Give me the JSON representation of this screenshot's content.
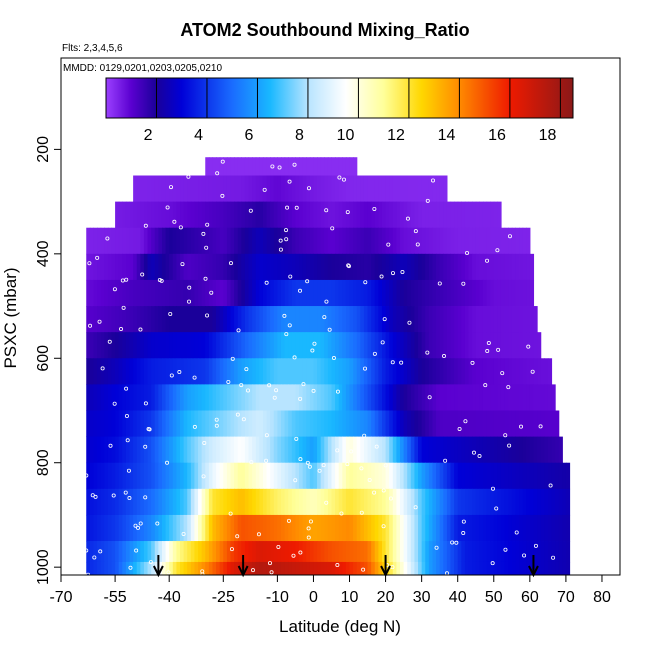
{
  "chart_data": {
    "type": "heatmap",
    "title": "ATOM2 Southbound Mixing_Ratio",
    "annotations": [
      "Flts: 2,3,4,5,6",
      "MMDD: 0129,0201,0203,0205,0210"
    ],
    "xlabel": "Latitude (deg N)",
    "ylabel": "PSXC (mbar)",
    "xlim": [
      -70,
      85
    ],
    "ylim": [
      1015,
      25
    ],
    "y_reversed": true,
    "x_ticks": [
      -70,
      -55,
      -40,
      -25,
      -10,
      0,
      10,
      20,
      30,
      40,
      50,
      60,
      70,
      80
    ],
    "x_tick_labels": [
      "-70",
      "-55",
      "-40",
      "-25",
      "-10",
      "0",
      "10",
      "20",
      "30",
      "40",
      "50",
      "60",
      "70",
      "80"
    ],
    "y_ticks": [
      200,
      400,
      600,
      800,
      1000
    ],
    "y_tick_labels": [
      "200",
      "400",
      "600",
      "800",
      "1000"
    ],
    "colorbar": {
      "range": [
        0,
        18.5
      ],
      "ticks": [
        2,
        4,
        6,
        8,
        10,
        12,
        14,
        16,
        18
      ],
      "tick_labels": [
        "2",
        "4",
        "6",
        "8",
        "10",
        "12",
        "14",
        "16",
        "18"
      ],
      "stops": [
        [
          0,
          "#9b40ff"
        ],
        [
          1,
          "#5a00d0"
        ],
        [
          2,
          "#1a009a"
        ],
        [
          3,
          "#0000d8"
        ],
        [
          5,
          "#1a6cff"
        ],
        [
          6.5,
          "#19b8ff"
        ],
        [
          8,
          "#b8e4ff"
        ],
        [
          9.5,
          "#ffffff"
        ],
        [
          11,
          "#ffff9a"
        ],
        [
          12.5,
          "#ffd700"
        ],
        [
          14,
          "#ff8a00"
        ],
        [
          16,
          "#ee1a00"
        ],
        [
          18.5,
          "#8b1818"
        ]
      ]
    },
    "pressure_bands": [
      {
        "p": [
          215,
          250
        ],
        "lat": [
          -30,
          12
        ],
        "lat_nodes": [
          -60,
          80
        ],
        "values": [
          0.3,
          0.3
        ]
      },
      {
        "p": [
          250,
          300
        ],
        "lat": [
          -50,
          37
        ],
        "lat_nodes": [
          -60,
          -20,
          -10,
          0,
          10,
          80
        ],
        "values": [
          0.4,
          0.6,
          0.9,
          0.6,
          0.4,
          0.3
        ]
      },
      {
        "p": [
          300,
          350
        ],
        "lat": [
          -55,
          52
        ],
        "lat_nodes": [
          -60,
          -40,
          -25,
          -15,
          -5,
          5,
          15,
          30,
          80
        ],
        "values": [
          0.5,
          0.8,
          1.3,
          1.8,
          1.0,
          0.7,
          1.0,
          0.5,
          0.4
        ]
      },
      {
        "p": [
          350,
          400
        ],
        "lat": [
          -63,
          60
        ],
        "lat_nodes": [
          -70,
          -48,
          -40,
          -25,
          -15,
          -5,
          5,
          15,
          25,
          40,
          80
        ],
        "values": [
          0.4,
          0.6,
          2.0,
          1.3,
          2.5,
          1.5,
          1.0,
          1.5,
          0.8,
          0.5,
          0.4
        ]
      },
      {
        "p": [
          400,
          450
        ],
        "lat": [
          -63,
          61
        ],
        "lat_nodes": [
          -70,
          -50,
          -45,
          -35,
          -25,
          -15,
          -5,
          5,
          15,
          25,
          35,
          45,
          80
        ],
        "values": [
          0.5,
          1.0,
          2.5,
          1.2,
          1.6,
          2.8,
          2.5,
          2.0,
          1.8,
          2.5,
          1.5,
          0.8,
          0.5
        ]
      },
      {
        "p": [
          450,
          500
        ],
        "lat": [
          -63,
          61
        ],
        "lat_nodes": [
          -70,
          -50,
          -35,
          -25,
          -15,
          -5,
          5,
          15,
          25,
          35,
          50,
          80
        ],
        "values": [
          0.6,
          1.3,
          1.6,
          1.0,
          3.0,
          4.0,
          4.0,
          3.5,
          2.0,
          1.5,
          0.8,
          0.6
        ]
      },
      {
        "p": [
          500,
          550
        ],
        "lat": [
          -63,
          62
        ],
        "lat_nodes": [
          -70,
          -50,
          -40,
          -28,
          -18,
          -8,
          2,
          12,
          22,
          32,
          45,
          80
        ],
        "values": [
          0.8,
          1.5,
          2.0,
          2.0,
          4.0,
          5.5,
          5.5,
          4.5,
          2.5,
          1.5,
          0.8,
          0.6
        ]
      },
      {
        "p": [
          550,
          600
        ],
        "lat": [
          -63,
          63
        ],
        "lat_nodes": [
          -70,
          -55,
          -45,
          -30,
          -18,
          -8,
          2,
          12,
          22,
          32,
          45,
          80
        ],
        "values": [
          1.0,
          2.0,
          2.8,
          3.0,
          5.0,
          6.5,
          6.5,
          5.0,
          3.0,
          1.5,
          0.8,
          0.6
        ]
      },
      {
        "p": [
          600,
          650
        ],
        "lat": [
          -63,
          66
        ],
        "lat_nodes": [
          -70,
          -55,
          -45,
          -30,
          -20,
          -10,
          0,
          10,
          20,
          30,
          45,
          80
        ],
        "values": [
          1.5,
          2.5,
          3.5,
          4.0,
          6.0,
          7.0,
          7.0,
          6.0,
          3.5,
          2.0,
          1.0,
          0.6
        ]
      },
      {
        "p": [
          650,
          700
        ],
        "lat": [
          -63,
          67
        ],
        "lat_nodes": [
          -70,
          -55,
          -45,
          -35,
          -25,
          -15,
          -5,
          5,
          15,
          25,
          35,
          80
        ],
        "values": [
          2.0,
          3.0,
          3.5,
          6.0,
          7.0,
          8.0,
          8.0,
          7.0,
          4.5,
          2.0,
          1.0,
          0.8
        ]
      },
      {
        "p": [
          700,
          750
        ],
        "lat": [
          -63,
          68
        ],
        "lat_nodes": [
          -70,
          -55,
          -45,
          -35,
          -25,
          -15,
          -5,
          5,
          15,
          25,
          35,
          80
        ],
        "values": [
          2.5,
          3.0,
          4.0,
          6.5,
          7.5,
          8.5,
          7.0,
          6.5,
          5.5,
          2.5,
          1.2,
          1.0
        ]
      },
      {
        "p": [
          750,
          800
        ],
        "lat": [
          -63,
          69
        ],
        "lat_nodes": [
          -70,
          -55,
          -45,
          -35,
          -28,
          -20,
          -10,
          0,
          10,
          20,
          30,
          80
        ],
        "values": [
          2.5,
          3.2,
          4.5,
          7.0,
          8.5,
          9.5,
          7.5,
          6.0,
          10.0,
          8.0,
          3.0,
          1.2
        ]
      },
      {
        "p": [
          800,
          850
        ],
        "lat": [
          -63,
          71
        ],
        "lat_nodes": [
          -70,
          -55,
          -45,
          -35,
          -28,
          -20,
          -10,
          0,
          10,
          20,
          30,
          40,
          80
        ],
        "values": [
          2.5,
          3.5,
          4.5,
          6.5,
          9.0,
          11.0,
          9.0,
          7.0,
          11.0,
          10.0,
          6.0,
          3.0,
          2.0
        ]
      },
      {
        "p": [
          850,
          900
        ],
        "lat": [
          -63,
          71
        ],
        "lat_nodes": [
          -70,
          -55,
          -45,
          -35,
          -28,
          -20,
          -10,
          0,
          10,
          20,
          30,
          40,
          80
        ],
        "values": [
          2.8,
          3.8,
          5.0,
          7.0,
          12.0,
          13.0,
          11.5,
          10.5,
          12.0,
          11.0,
          7.0,
          4.0,
          2.0
        ]
      },
      {
        "p": [
          900,
          950
        ],
        "lat": [
          -63,
          71
        ],
        "lat_nodes": [
          -70,
          -55,
          -45,
          -35,
          -28,
          -20,
          -10,
          0,
          10,
          20,
          30,
          40,
          80
        ],
        "values": [
          2.8,
          4.0,
          5.5,
          8.0,
          13.0,
          15.0,
          14.5,
          13.5,
          14.0,
          12.0,
          7.0,
          3.5,
          2.0
        ]
      },
      {
        "p": [
          950,
          990
        ],
        "lat": [
          -63,
          71
        ],
        "lat_nodes": [
          -70,
          -55,
          -45,
          -38,
          -30,
          -22,
          -15,
          -5,
          5,
          15,
          22,
          32,
          42,
          80
        ],
        "values": [
          3.0,
          4.5,
          7.0,
          11.0,
          13.0,
          15.5,
          16.5,
          16.0,
          15.0,
          14.5,
          11.0,
          6.0,
          3.5,
          2.0
        ]
      },
      {
        "p": [
          990,
          1015
        ],
        "lat": [
          -63,
          71
        ],
        "lat_nodes": [
          -70,
          -55,
          -45,
          -38,
          -30,
          -22,
          -15,
          -5,
          5,
          15,
          22,
          32,
          42,
          80
        ],
        "values": [
          3.0,
          4.5,
          8.0,
          12.0,
          14.0,
          16.5,
          17.5,
          17.0,
          16.5,
          15.0,
          11.5,
          6.0,
          3.5,
          2.0
        ]
      }
    ],
    "markers": [
      -43,
      -19.5,
      20,
      61
    ]
  }
}
